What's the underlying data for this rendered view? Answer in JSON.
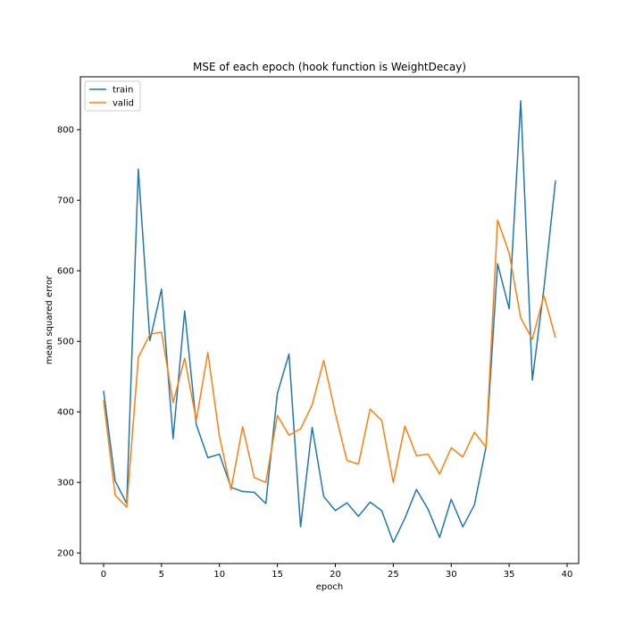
{
  "chart_data": {
    "type": "line",
    "title": "MSE of each epoch (hook function is WeightDecay)",
    "xlabel": "epoch",
    "ylabel": "mean squared error",
    "xlim": [
      -2,
      41
    ],
    "ylim": [
      185,
      875
    ],
    "xticks": [
      0,
      5,
      10,
      15,
      20,
      25,
      30,
      35,
      40
    ],
    "yticks": [
      200,
      300,
      400,
      500,
      600,
      700,
      800
    ],
    "grid": false,
    "legend_position": "top-left",
    "x": [
      0,
      1,
      2,
      3,
      4,
      5,
      6,
      7,
      8,
      9,
      10,
      11,
      12,
      13,
      14,
      15,
      16,
      17,
      18,
      19,
      20,
      21,
      22,
      23,
      24,
      25,
      26,
      27,
      28,
      29,
      30,
      31,
      32,
      33,
      34,
      35,
      36,
      37,
      38,
      39
    ],
    "series": [
      {
        "name": "train",
        "color": "#1f77b4",
        "values": [
          430,
          302,
          270,
          744,
          501,
          574,
          362,
          543,
          382,
          335,
          340,
          293,
          287,
          286,
          270,
          426,
          482,
          237,
          378,
          280,
          260,
          271,
          252,
          272,
          260,
          215,
          249,
          290,
          262,
          222,
          276,
          237,
          268,
          350,
          610,
          546,
          841,
          445,
          575,
          728
        ]
      },
      {
        "name": "valid",
        "color": "#ff7f0e",
        "values": [
          416,
          282,
          265,
          477,
          510,
          513,
          413,
          476,
          388,
          484,
          365,
          290,
          379,
          307,
          300,
          395,
          367,
          376,
          410,
          473,
          398,
          331,
          326,
          404,
          388,
          300,
          380,
          338,
          340,
          312,
          349,
          336,
          371,
          350,
          672,
          625,
          533,
          503,
          565,
          505
        ]
      }
    ]
  }
}
